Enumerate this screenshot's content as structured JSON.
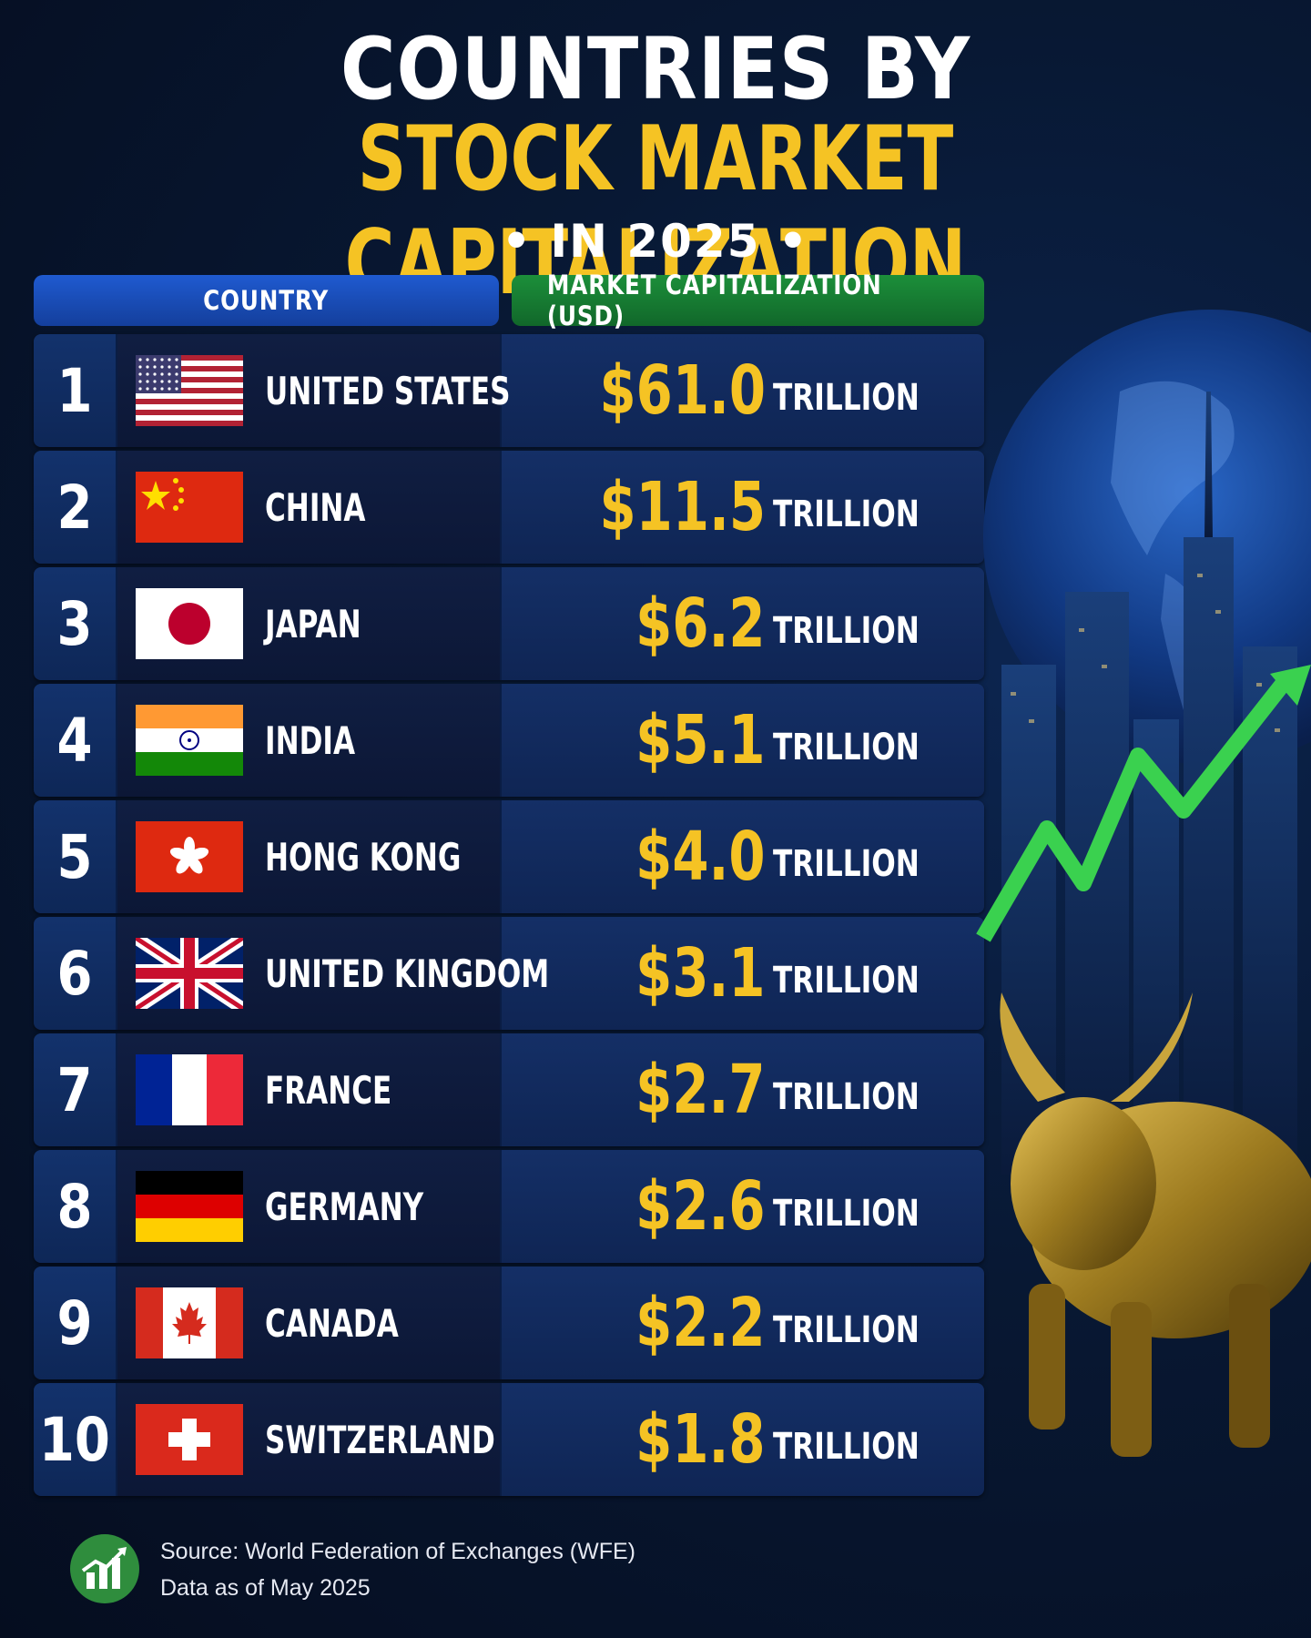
{
  "header": {
    "title_line1": "COUNTRIES BY",
    "title_line2": "STOCK MARKET CAPITALIZATION",
    "title_line3": "• IN 2025 •"
  },
  "table": {
    "col_country": "COUNTRY",
    "col_cap": "MARKET CAPITALIZATION (USD)"
  },
  "chart_data": {
    "type": "table",
    "title": "COUNTRIES BY STOCK MARKET CAPITALIZATION • IN 2025 •",
    "columns": [
      "COUNTRY",
      "MARKET CAPITALIZATION (USD)"
    ],
    "unit": "TRILLION",
    "rows": [
      {
        "rank": "1",
        "country": "UNITED STATES",
        "value": "$61.0",
        "unit": "TRILLION",
        "flag": "us-flag-icon"
      },
      {
        "rank": "2",
        "country": "CHINA",
        "value": "$11.5",
        "unit": "TRILLION",
        "flag": "china-flag-icon"
      },
      {
        "rank": "3",
        "country": "JAPAN",
        "value": "$6.2",
        "unit": "TRILLION",
        "flag": "japan-flag-icon"
      },
      {
        "rank": "4",
        "country": "INDIA",
        "value": "$5.1",
        "unit": "TRILLION",
        "flag": "india-flag-icon"
      },
      {
        "rank": "5",
        "country": "HONG KONG",
        "value": "$4.0",
        "unit": "TRILLION",
        "flag": "hong-kong-flag-icon"
      },
      {
        "rank": "6",
        "country": "UNITED KINGDOM",
        "value": "$3.1",
        "unit": "TRILLION",
        "flag": "uk-flag-icon"
      },
      {
        "rank": "7",
        "country": "FRANCE",
        "value": "$2.7",
        "unit": "TRILLION",
        "flag": "france-flag-icon"
      },
      {
        "rank": "8",
        "country": "GERMANY",
        "value": "$2.6",
        "unit": "TRILLION",
        "flag": "germany-flag-icon"
      },
      {
        "rank": "9",
        "country": "CANADA",
        "value": "$2.2",
        "unit": "TRILLION",
        "flag": "canada-flag-icon"
      },
      {
        "rank": "10",
        "country": "SWITZERLAND",
        "value": "$1.8",
        "unit": "TRILLION",
        "flag": "switzerland-flag-icon"
      }
    ]
  },
  "footer": {
    "source": "Source: World Federation of Exchanges (WFE)",
    "as_of": "Data as of May 2025",
    "icon": "chart-growth-icon"
  },
  "colors": {
    "accent_gold": "#f5c324",
    "header_blue": "#1f5ad0",
    "header_green": "#1c8f3a",
    "background": "#081833"
  }
}
